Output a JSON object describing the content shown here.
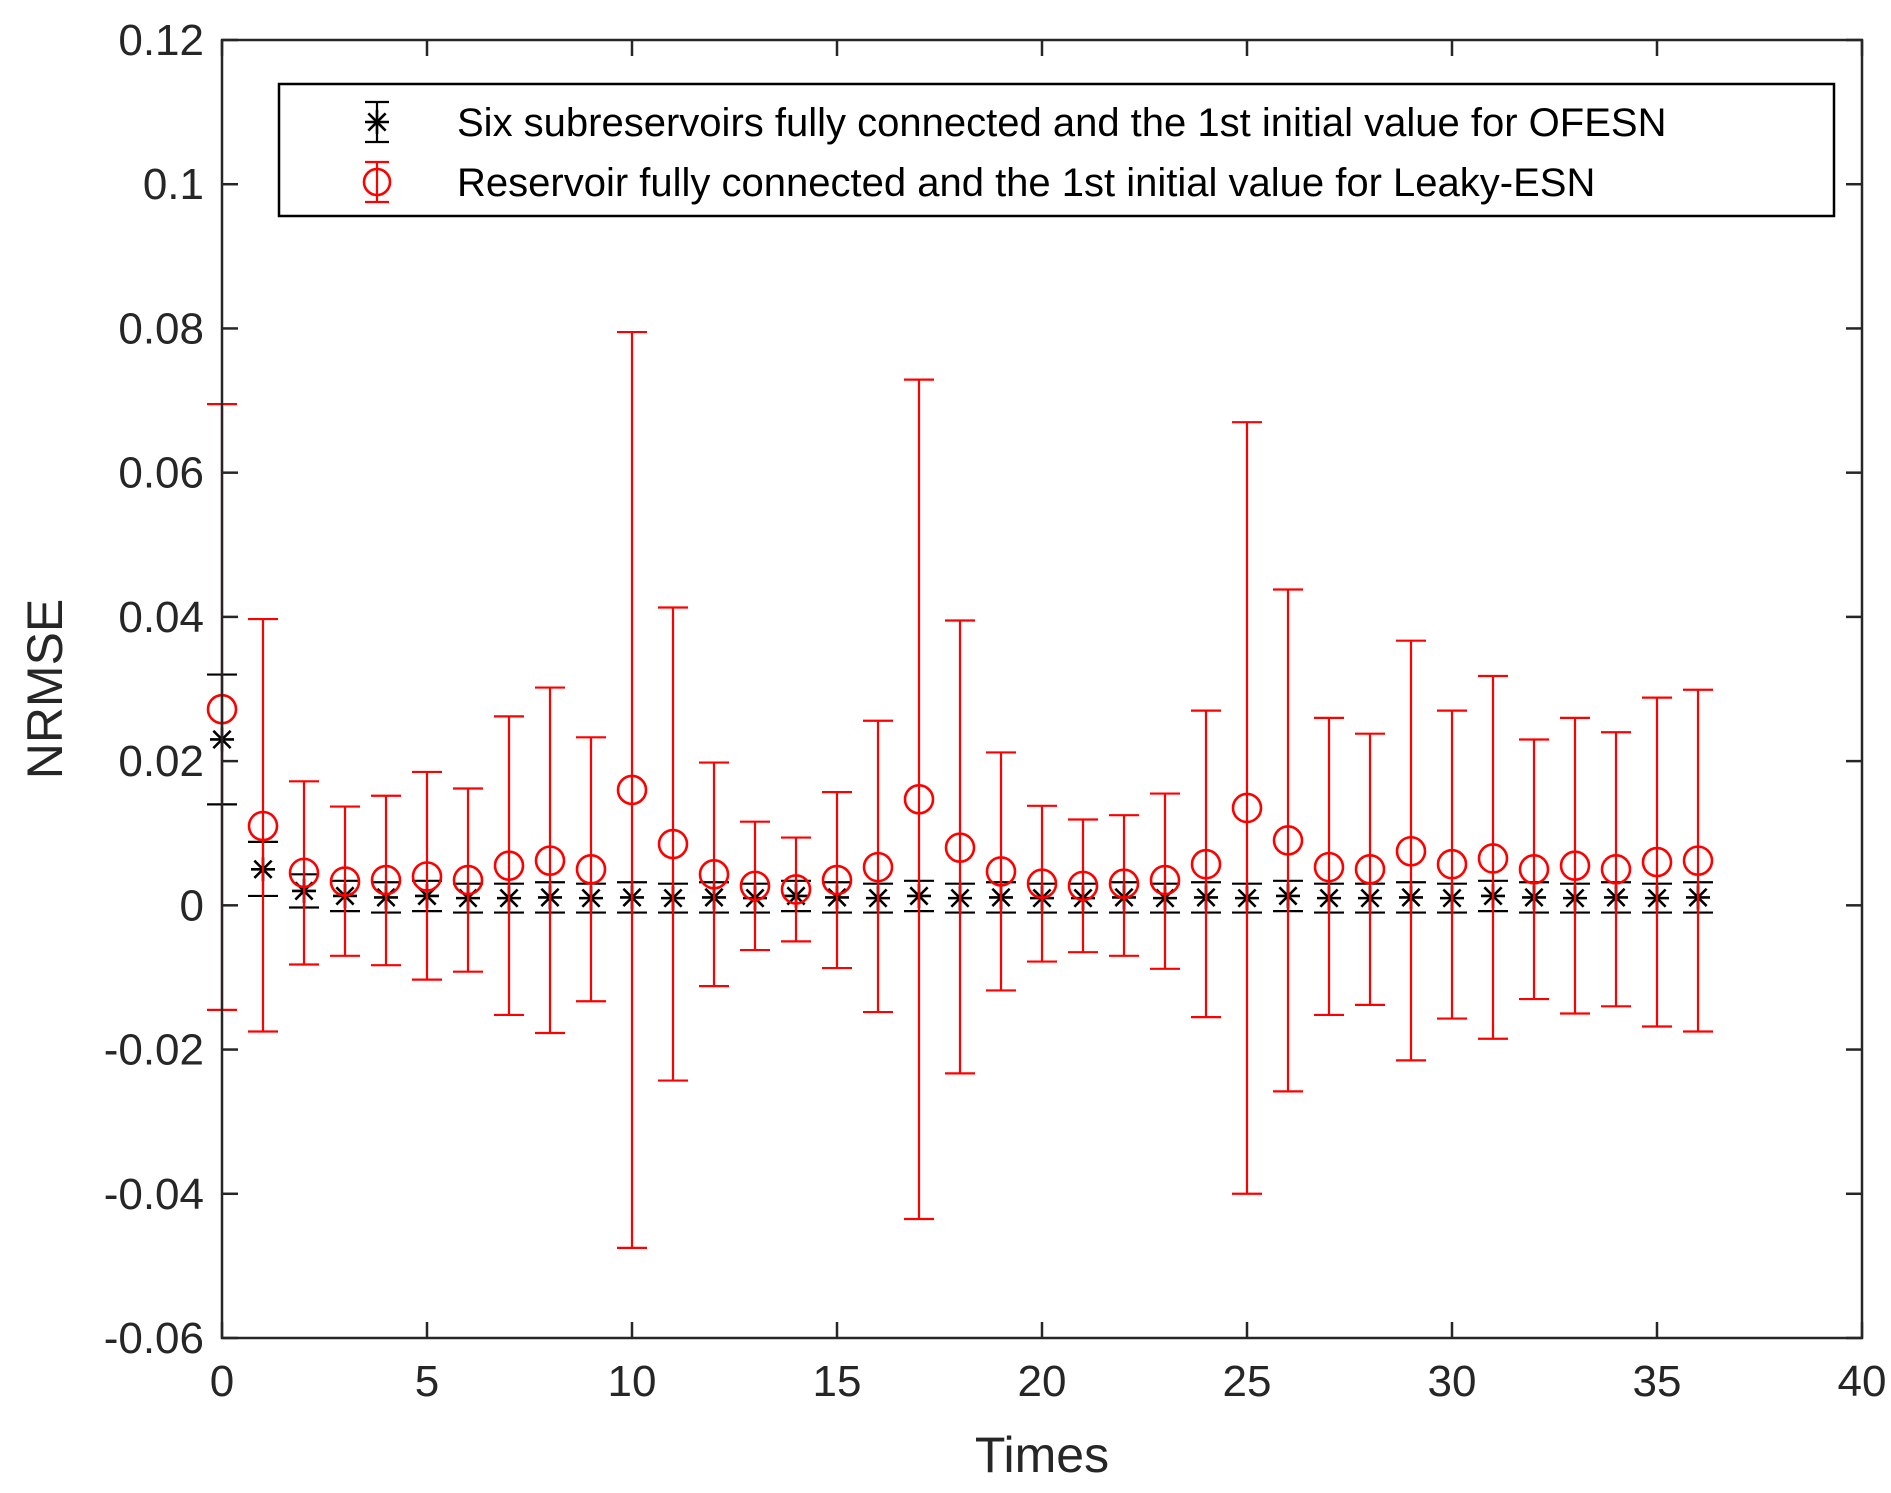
{
  "chart_data": {
    "type": "errorbar",
    "title": "",
    "xlabel": "Times",
    "ylabel": "NRMSE",
    "xlim": [
      0,
      40
    ],
    "ylim": [
      -0.06,
      0.12
    ],
    "xticks": [
      0,
      5,
      10,
      15,
      20,
      25,
      30,
      35,
      40
    ],
    "yticks": [
      -0.06,
      -0.04,
      -0.02,
      0,
      0.02,
      0.04,
      0.06,
      0.08,
      0.1,
      0.12
    ],
    "xtick_labels": [
      "0",
      "5",
      "10",
      "15",
      "20",
      "25",
      "30",
      "35",
      "40"
    ],
    "ytick_labels": [
      "-0.06",
      "-0.04",
      "-0.02",
      "0",
      "0.02",
      "0.04",
      "0.06",
      "0.08",
      "0.1",
      "0.12"
    ],
    "legend_position": "top-right",
    "x": [
      0,
      1,
      2,
      3,
      4,
      5,
      6,
      7,
      8,
      9,
      10,
      11,
      12,
      13,
      14,
      15,
      16,
      17,
      18,
      19,
      20,
      21,
      22,
      23,
      24,
      25,
      26,
      27,
      28,
      29,
      30,
      31,
      32,
      33,
      34,
      35,
      36
    ],
    "series": [
      {
        "name": "Six subreservoirs fully connected and the 1st initial value for OFESN",
        "marker": "star",
        "color": "#000000",
        "mean": [
          0.023,
          0.005,
          0.002,
          0.0013,
          0.0011,
          0.0013,
          0.001,
          0.001,
          0.0011,
          0.001,
          0.0011,
          0.001,
          0.0011,
          0.001,
          0.0013,
          0.0011,
          0.001,
          0.0013,
          0.001,
          0.0011,
          0.001,
          0.001,
          0.0011,
          0.001,
          0.0011,
          0.001,
          0.0013,
          0.001,
          0.001,
          0.0011,
          0.001,
          0.0013,
          0.0011,
          0.001,
          0.0011,
          0.001,
          0.0011
        ],
        "lower": [
          0.014,
          0.0013,
          -0.0003,
          -0.0008,
          -0.001,
          -0.0008,
          -0.001,
          -0.001,
          -0.001,
          -0.001,
          -0.001,
          -0.001,
          -0.001,
          -0.001,
          -0.0008,
          -0.001,
          -0.001,
          -0.0008,
          -0.001,
          -0.001,
          -0.001,
          -0.001,
          -0.001,
          -0.001,
          -0.001,
          -0.001,
          -0.0008,
          -0.001,
          -0.001,
          -0.001,
          -0.001,
          -0.0008,
          -0.001,
          -0.001,
          -0.001,
          -0.001,
          -0.001
        ],
        "upper": [
          0.032,
          0.0088,
          0.0043,
          0.0034,
          0.0032,
          0.0034,
          0.003,
          0.003,
          0.0032,
          0.003,
          0.0032,
          0.003,
          0.0032,
          0.003,
          0.0034,
          0.0032,
          0.003,
          0.0034,
          0.003,
          0.0032,
          0.003,
          0.003,
          0.0032,
          0.003,
          0.0032,
          0.003,
          0.0034,
          0.003,
          0.003,
          0.0032,
          0.003,
          0.0034,
          0.0032,
          0.003,
          0.0032,
          0.003,
          0.0032
        ]
      },
      {
        "name": "Reservoir fully connected and the 1st initial value for Leaky-ESN",
        "marker": "circle",
        "color": "#ff0000",
        "mean": [
          0.0272,
          0.011,
          0.0045,
          0.0033,
          0.0035,
          0.004,
          0.0035,
          0.0055,
          0.0062,
          0.005,
          0.016,
          0.0085,
          0.0043,
          0.0027,
          0.0022,
          0.0035,
          0.0053,
          0.0147,
          0.008,
          0.0047,
          0.003,
          0.0027,
          0.003,
          0.0035,
          0.0057,
          0.0135,
          0.009,
          0.0053,
          0.005,
          0.0075,
          0.0057,
          0.0065,
          0.005,
          0.0055,
          0.005,
          0.006,
          0.0062
        ],
        "lower": [
          -0.0145,
          -0.0175,
          -0.0082,
          -0.007,
          -0.0083,
          -0.0103,
          -0.0092,
          -0.0152,
          -0.0177,
          -0.0133,
          -0.0475,
          -0.0243,
          -0.0112,
          -0.0062,
          -0.005,
          -0.0087,
          -0.0148,
          -0.0435,
          -0.0233,
          -0.0118,
          -0.0078,
          -0.0065,
          -0.007,
          -0.0088,
          -0.0155,
          -0.04,
          -0.0258,
          -0.0152,
          -0.0138,
          -0.0215,
          -0.0157,
          -0.0185,
          -0.013,
          -0.015,
          -0.014,
          -0.0168,
          -0.0175
        ],
        "upper": [
          0.0695,
          0.0397,
          0.0172,
          0.0137,
          0.0152,
          0.0185,
          0.0162,
          0.0262,
          0.0302,
          0.0233,
          0.0795,
          0.0413,
          0.0198,
          0.0116,
          0.0094,
          0.0157,
          0.0256,
          0.0729,
          0.0395,
          0.0212,
          0.0138,
          0.0119,
          0.0125,
          0.0155,
          0.027,
          0.067,
          0.0438,
          0.026,
          0.0238,
          0.0367,
          0.027,
          0.0318,
          0.023,
          0.026,
          0.024,
          0.0288,
          0.0299
        ]
      }
    ]
  }
}
